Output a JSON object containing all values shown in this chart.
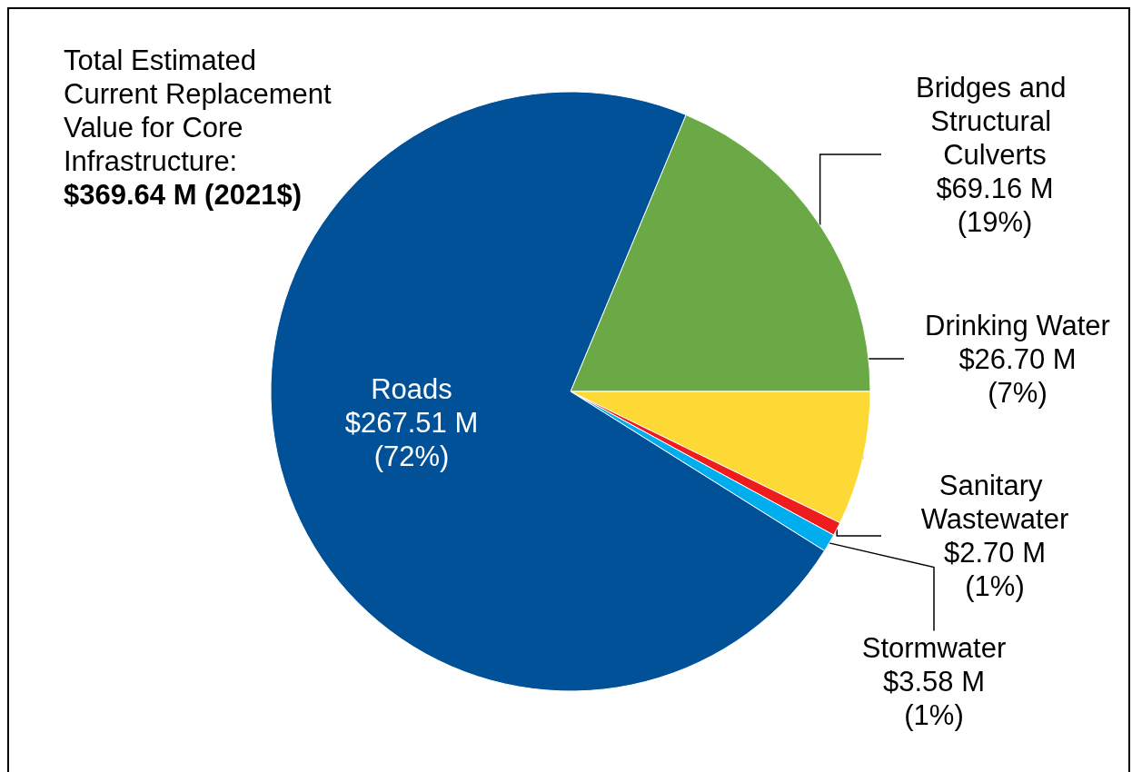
{
  "chart_data": {
    "type": "pie",
    "categories": [
      "Bridges and Structural Culverts",
      "Drinking Water",
      "Sanitary Wastewater",
      "Stormwater",
      "Roads"
    ],
    "values": [
      69.16,
      26.7,
      2.7,
      3.58,
      267.51
    ],
    "value_labels": [
      "$69.16 M\n(19%)",
      "$26.70 M\n(7%)",
      "$2.70 M\n(1%)",
      "$3.58 M\n(1%)",
      "$267.51 M\n(72%)"
    ],
    "colors": [
      "#6aa946",
      "#fdd935",
      "#ee1c1c",
      "#00aeef",
      "#005198"
    ],
    "annotations": [
      "Total Estimated\nCurrent Replacement\nValue for Core\nInfrastructure:",
      "$369.64 M (2021$)"
    ],
    "legend": false
  }
}
